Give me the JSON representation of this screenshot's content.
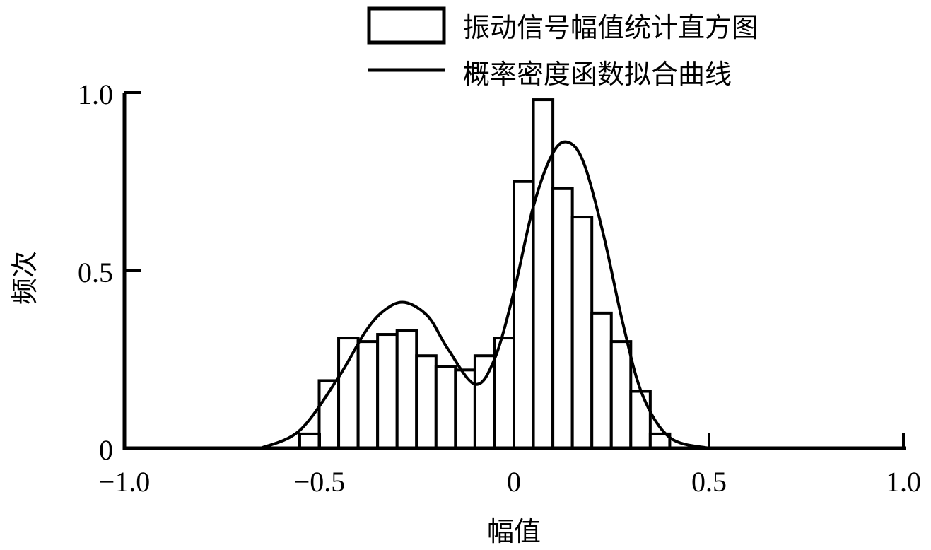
{
  "chart_data": {
    "type": "bar",
    "title": "",
    "xlabel": "幅值",
    "ylabel": "频次",
    "xlim": [
      -1.0,
      1.0
    ],
    "ylim": [
      0,
      1.0
    ],
    "xticks": [
      "−1.0",
      "−0.5",
      "0",
      "0.5",
      "1.0"
    ],
    "yticks": [
      "0",
      "0.5",
      "1.0"
    ],
    "grid": false,
    "legend_position": "top-right",
    "legend": [
      "振动信号幅值统计直方图",
      "概率密度函数拟合曲线"
    ],
    "bin_width": 0.05,
    "series": [
      {
        "name": "振动信号幅值统计直方图",
        "type": "histogram",
        "bin_left_edges": [
          -0.55,
          -0.5,
          -0.45,
          -0.4,
          -0.35,
          -0.3,
          -0.25,
          -0.2,
          -0.15,
          -0.1,
          -0.05,
          0.0,
          0.05,
          0.1,
          0.15,
          0.2,
          0.25,
          0.3,
          0.35
        ],
        "values": [
          0.04,
          0.19,
          0.31,
          0.3,
          0.32,
          0.33,
          0.26,
          0.23,
          0.22,
          0.26,
          0.31,
          0.75,
          0.98,
          0.73,
          0.65,
          0.38,
          0.3,
          0.16,
          0.04
        ]
      },
      {
        "name": "概率密度函数拟合曲线",
        "type": "line",
        "x": [
          -0.65,
          -0.55,
          -0.45,
          -0.38,
          -0.33,
          -0.28,
          -0.22,
          -0.17,
          -0.1,
          -0.05,
          0.0,
          0.05,
          0.1,
          0.14,
          0.18,
          0.23,
          0.28,
          0.33,
          0.4,
          0.5
        ],
        "values": [
          0.0,
          0.05,
          0.2,
          0.33,
          0.39,
          0.41,
          0.37,
          0.28,
          0.18,
          0.25,
          0.44,
          0.68,
          0.83,
          0.86,
          0.8,
          0.6,
          0.35,
          0.15,
          0.03,
          0.0
        ]
      }
    ]
  },
  "labels": {
    "xlabel": "幅值",
    "ylabel": "频次",
    "legend_hist": "振动信号幅值统计直方图",
    "legend_curve": "概率密度函数拟合曲线",
    "xt0": "−1.0",
    "xt1": "−0.5",
    "xt2": "0",
    "xt3": "0.5",
    "xt4": "1.0",
    "yt0": "0",
    "yt1": "0.5",
    "yt2": "1.0"
  }
}
